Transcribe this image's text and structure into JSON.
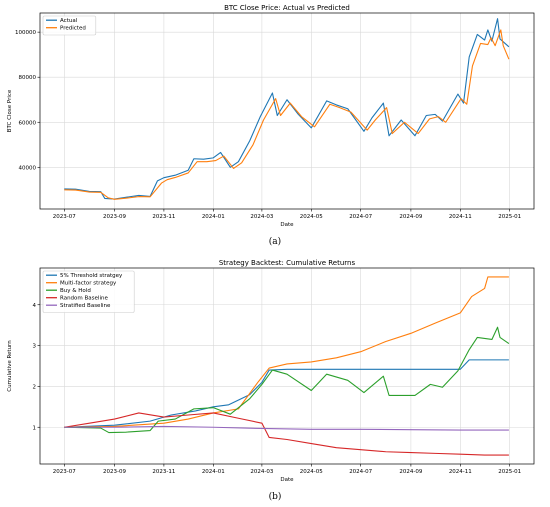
{
  "captions": [
    "(a)",
    "(b)"
  ],
  "chart_data": [
    {
      "type": "line",
      "title": "BTC Close Price: Actual vs Predicted",
      "xlabel": "Date",
      "ylabel": "BTC Close Price",
      "x_ticks": [
        "2023-07",
        "2023-09",
        "2023-11",
        "2024-01",
        "2024-03",
        "2024-05",
        "2024-07",
        "2024-09",
        "2024-11",
        "2025-01"
      ],
      "y_ticks": [
        40000,
        60000,
        80000,
        100000
      ],
      "ylim": [
        21500,
        108500
      ],
      "xlim": [
        "2023-06-01",
        "2025-01-31"
      ],
      "grid": true,
      "legend_placement": "top-left",
      "series": [
        {
          "name": "Actual",
          "color": "#1f77b4",
          "points": [
            [
              "2023-07-01",
              30400
            ],
            [
              "2023-07-15",
              30300
            ],
            [
              "2023-08-01",
              29300
            ],
            [
              "2023-08-15",
              29200
            ],
            [
              "2023-08-20",
              26200
            ],
            [
              "2023-09-01",
              25900
            ],
            [
              "2023-09-15",
              26700
            ],
            [
              "2023-10-01",
              27500
            ],
            [
              "2023-10-15",
              27100
            ],
            [
              "2023-10-24",
              34000
            ],
            [
              "2023-11-01",
              35400
            ],
            [
              "2023-11-15",
              36500
            ],
            [
              "2023-12-01",
              38700
            ],
            [
              "2023-12-08",
              43800
            ],
            [
              "2023-12-20",
              43600
            ],
            [
              "2024-01-01",
              44200
            ],
            [
              "2024-01-10",
              46600
            ],
            [
              "2024-01-22",
              40000
            ],
            [
              "2024-02-01",
              42500
            ],
            [
              "2024-02-15",
              51800
            ],
            [
              "2024-02-28",
              62500
            ],
            [
              "2024-03-14",
              73000
            ],
            [
              "2024-03-20",
              63000
            ],
            [
              "2024-04-01",
              70000
            ],
            [
              "2024-04-15",
              63500
            ],
            [
              "2024-05-01",
              57500
            ],
            [
              "2024-05-20",
              69500
            ],
            [
              "2024-06-01",
              67700
            ],
            [
              "2024-06-15",
              66000
            ],
            [
              "2024-07-05",
              56000
            ],
            [
              "2024-07-15",
              62000
            ],
            [
              "2024-07-29",
              68500
            ],
            [
              "2024-08-05",
              54000
            ],
            [
              "2024-08-20",
              61000
            ],
            [
              "2024-09-06",
              54000
            ],
            [
              "2024-09-20",
              63000
            ],
            [
              "2024-10-01",
              63500
            ],
            [
              "2024-10-10",
              60500
            ],
            [
              "2024-10-29",
              72500
            ],
            [
              "2024-11-05",
              68500
            ],
            [
              "2024-11-12",
              89000
            ],
            [
              "2024-11-22",
              99000
            ],
            [
              "2024-12-01",
              96500
            ],
            [
              "2024-12-05",
              101000
            ],
            [
              "2024-12-10",
              96000
            ],
            [
              "2024-12-17",
              106000
            ],
            [
              "2024-12-20",
              97000
            ],
            [
              "2024-12-31",
              93500
            ]
          ]
        },
        {
          "name": "Predicted",
          "color": "#ff7f0e",
          "points": [
            [
              "2023-07-01",
              30000
            ],
            [
              "2023-07-15",
              29900
            ],
            [
              "2023-08-01",
              29000
            ],
            [
              "2023-08-15",
              28900
            ],
            [
              "2023-08-24",
              26500
            ],
            [
              "2023-09-01",
              25800
            ],
            [
              "2023-09-15",
              26300
            ],
            [
              "2023-10-01",
              27000
            ],
            [
              "2023-10-15",
              26900
            ],
            [
              "2023-10-29",
              33000
            ],
            [
              "2023-11-05",
              34500
            ],
            [
              "2023-11-15",
              35500
            ],
            [
              "2023-12-01",
              37500
            ],
            [
              "2023-12-12",
              42500
            ],
            [
              "2023-12-24",
              42500
            ],
            [
              "2024-01-04",
              43000
            ],
            [
              "2024-01-14",
              45000
            ],
            [
              "2024-01-26",
              39500
            ],
            [
              "2024-02-05",
              42000
            ],
            [
              "2024-02-19",
              50000
            ],
            [
              "2024-03-03",
              61000
            ],
            [
              "2024-03-18",
              70500
            ],
            [
              "2024-03-24",
              63000
            ],
            [
              "2024-04-05",
              68500
            ],
            [
              "2024-04-19",
              62500
            ],
            [
              "2024-05-05",
              58000
            ],
            [
              "2024-05-24",
              68000
            ],
            [
              "2024-06-05",
              66500
            ],
            [
              "2024-06-19",
              64500
            ],
            [
              "2024-07-09",
              56500
            ],
            [
              "2024-07-19",
              61000
            ],
            [
              "2024-08-02",
              66500
            ],
            [
              "2024-08-09",
              55000
            ],
            [
              "2024-08-24",
              60000
            ],
            [
              "2024-09-10",
              55000
            ],
            [
              "2024-09-24",
              61500
            ],
            [
              "2024-10-05",
              62500
            ],
            [
              "2024-10-14",
              60000
            ],
            [
              "2024-11-02",
              70500
            ],
            [
              "2024-11-09",
              68000
            ],
            [
              "2024-11-16",
              85000
            ],
            [
              "2024-11-26",
              95000
            ],
            [
              "2024-12-05",
              94500
            ],
            [
              "2024-12-09",
              97500
            ],
            [
              "2024-12-14",
              94000
            ],
            [
              "2024-12-21",
              101000
            ],
            [
              "2024-12-24",
              94000
            ],
            [
              "2024-12-31",
              88000
            ]
          ]
        }
      ]
    },
    {
      "type": "line",
      "title": "Strategy Backtest: Cumulative Returns",
      "xlabel": "Date",
      "ylabel": "Cumulative Return",
      "x_ticks": [
        "2023-07",
        "2023-09",
        "2023-11",
        "2024-01",
        "2024-03",
        "2024-05",
        "2024-07",
        "2024-09",
        "2024-11",
        "2025-01"
      ],
      "y_ticks": [
        1,
        2,
        3,
        4
      ],
      "ylim": [
        0.1,
        4.9
      ],
      "xlim": [
        "2023-06-01",
        "2025-01-31"
      ],
      "grid": true,
      "legend_placement": "top-left",
      "series": [
        {
          "name": "5% Threshold stratgey",
          "color": "#1f77b4",
          "points": [
            [
              "2023-07-01",
              1.0
            ],
            [
              "2023-09-01",
              1.05
            ],
            [
              "2023-10-15",
              1.15
            ],
            [
              "2023-11-10",
              1.3
            ],
            [
              "2023-12-10",
              1.4
            ],
            [
              "2024-01-01",
              1.5
            ],
            [
              "2024-01-20",
              1.55
            ],
            [
              "2024-02-15",
              1.8
            ],
            [
              "2024-03-01",
              2.1
            ],
            [
              "2024-03-10",
              2.4
            ],
            [
              "2024-04-01",
              2.42
            ],
            [
              "2024-06-01",
              2.42
            ],
            [
              "2024-09-01",
              2.42
            ],
            [
              "2024-11-01",
              2.42
            ],
            [
              "2024-11-12",
              2.65
            ],
            [
              "2024-12-31",
              2.65
            ]
          ]
        },
        {
          "name": "Multi-factor strategy",
          "color": "#ff7f0e",
          "points": [
            [
              "2023-07-01",
              1.0
            ],
            [
              "2023-09-01",
              1.02
            ],
            [
              "2023-11-01",
              1.1
            ],
            [
              "2023-12-01",
              1.2
            ],
            [
              "2024-01-01",
              1.35
            ],
            [
              "2024-02-01",
              1.45
            ],
            [
              "2024-02-25",
              2.1
            ],
            [
              "2024-03-10",
              2.45
            ],
            [
              "2024-04-01",
              2.55
            ],
            [
              "2024-05-01",
              2.6
            ],
            [
              "2024-06-01",
              2.7
            ],
            [
              "2024-07-01",
              2.85
            ],
            [
              "2024-08-01",
              3.1
            ],
            [
              "2024-09-01",
              3.3
            ],
            [
              "2024-10-01",
              3.55
            ],
            [
              "2024-11-01",
              3.8
            ],
            [
              "2024-11-15",
              4.2
            ],
            [
              "2024-12-01",
              4.4
            ],
            [
              "2024-12-05",
              4.68
            ],
            [
              "2024-12-31",
              4.68
            ]
          ]
        },
        {
          "name": "Buy & Hold",
          "color": "#2ca02c",
          "points": [
            [
              "2023-07-01",
              1.0
            ],
            [
              "2023-08-15",
              0.98
            ],
            [
              "2023-08-25",
              0.87
            ],
            [
              "2023-09-15",
              0.88
            ],
            [
              "2023-10-15",
              0.92
            ],
            [
              "2023-10-25",
              1.15
            ],
            [
              "2023-11-15",
              1.2
            ],
            [
              "2023-12-08",
              1.45
            ],
            [
              "2024-01-01",
              1.48
            ],
            [
              "2024-01-22",
              1.32
            ],
            [
              "2024-02-15",
              1.7
            ],
            [
              "2024-03-01",
              2.05
            ],
            [
              "2024-03-14",
              2.4
            ],
            [
              "2024-04-01",
              2.3
            ],
            [
              "2024-05-01",
              1.9
            ],
            [
              "2024-05-20",
              2.3
            ],
            [
              "2024-06-15",
              2.15
            ],
            [
              "2024-07-05",
              1.85
            ],
            [
              "2024-07-29",
              2.25
            ],
            [
              "2024-08-05",
              1.78
            ],
            [
              "2024-09-06",
              1.78
            ],
            [
              "2024-09-25",
              2.05
            ],
            [
              "2024-10-10",
              1.98
            ],
            [
              "2024-10-29",
              2.38
            ],
            [
              "2024-11-12",
              2.9
            ],
            [
              "2024-11-22",
              3.2
            ],
            [
              "2024-12-10",
              3.15
            ],
            [
              "2024-12-17",
              3.45
            ],
            [
              "2024-12-20",
              3.2
            ],
            [
              "2024-12-31",
              3.05
            ]
          ]
        },
        {
          "name": "Random Baseline",
          "color": "#d62728",
          "points": [
            [
              "2023-07-01",
              1.0
            ],
            [
              "2023-08-01",
              1.1
            ],
            [
              "2023-09-01",
              1.2
            ],
            [
              "2023-10-01",
              1.35
            ],
            [
              "2023-11-01",
              1.25
            ],
            [
              "2023-12-01",
              1.3
            ],
            [
              "2024-01-01",
              1.35
            ],
            [
              "2024-02-01",
              1.22
            ],
            [
              "2024-03-01",
              1.1
            ],
            [
              "2024-03-10",
              0.75
            ],
            [
              "2024-04-01",
              0.7
            ],
            [
              "2024-05-01",
              0.6
            ],
            [
              "2024-06-01",
              0.5
            ],
            [
              "2024-07-01",
              0.45
            ],
            [
              "2024-08-01",
              0.4
            ],
            [
              "2024-09-01",
              0.38
            ],
            [
              "2024-10-01",
              0.36
            ],
            [
              "2024-11-01",
              0.34
            ],
            [
              "2024-12-01",
              0.32
            ],
            [
              "2024-12-31",
              0.32
            ]
          ]
        },
        {
          "name": "Stratified Baseline",
          "color": "#9467bd",
          "points": [
            [
              "2023-07-01",
              1.0
            ],
            [
              "2023-09-01",
              1.0
            ],
            [
              "2023-11-01",
              1.02
            ],
            [
              "2024-01-01",
              1.0
            ],
            [
              "2024-03-01",
              0.97
            ],
            [
              "2024-05-01",
              0.95
            ],
            [
              "2024-07-01",
              0.95
            ],
            [
              "2024-09-01",
              0.94
            ],
            [
              "2024-11-01",
              0.93
            ],
            [
              "2024-12-31",
              0.93
            ]
          ]
        }
      ]
    }
  ]
}
